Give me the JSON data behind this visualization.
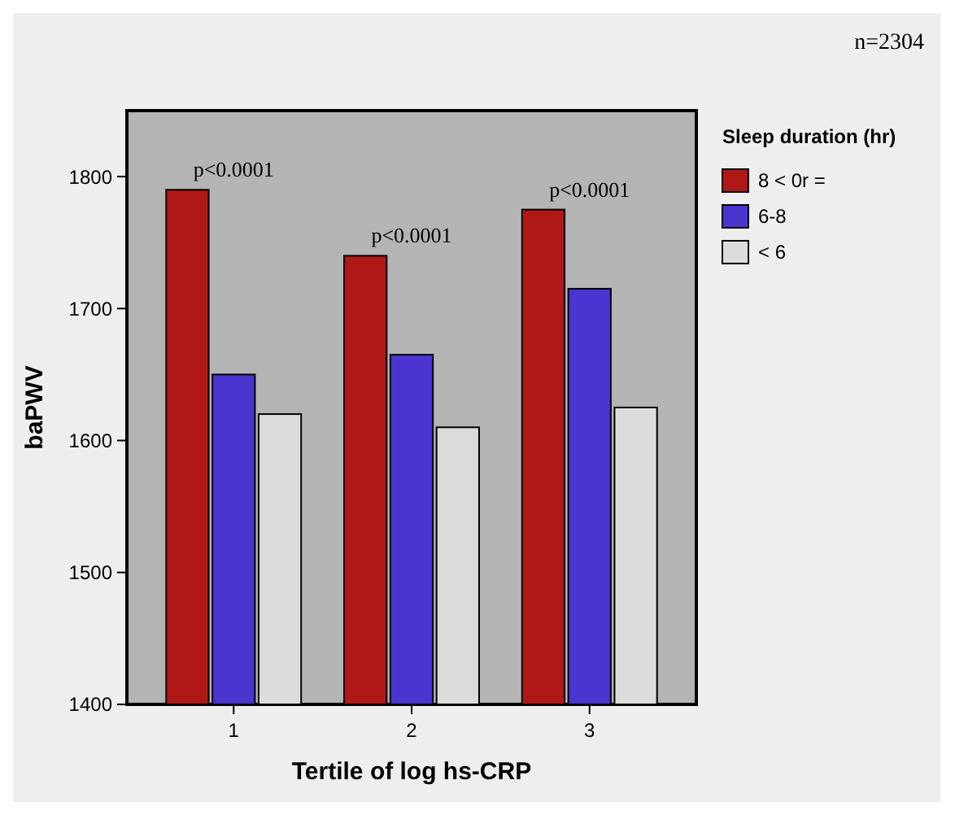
{
  "chart_data": {
    "type": "bar",
    "xlabel": "Tertile of log hs-CRP",
    "ylabel": "baPWV",
    "legend_title": "Sleep duration (hr)",
    "categories": [
      "1",
      "2",
      "3"
    ],
    "series": [
      {
        "name": "8 < 0r =",
        "color": "#b01818",
        "values": [
          1790,
          1740,
          1775
        ]
      },
      {
        "name": "6-8",
        "color": "#4a35d0",
        "values": [
          1650,
          1665,
          1715
        ]
      },
      {
        "name": "< 6",
        "color": "#dcdcdc",
        "values": [
          1620,
          1610,
          1625
        ]
      }
    ],
    "ylim": [
      1400,
      1850
    ],
    "yticks": [
      1400,
      1500,
      1600,
      1700,
      1800
    ],
    "grid": false,
    "legend": "right",
    "annotations": [
      "p<0.0001",
      "p<0.0001",
      "p<0.0001",
      "n=2304"
    ]
  }
}
